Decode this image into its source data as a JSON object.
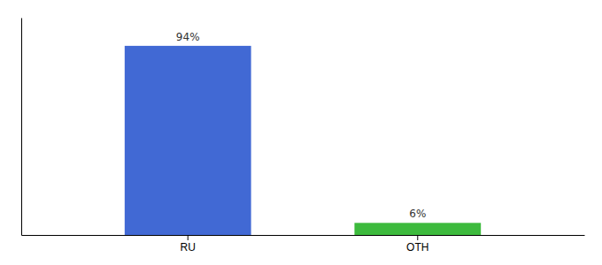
{
  "chart_data": {
    "type": "bar",
    "categories": [
      "RU",
      "OTH"
    ],
    "values": [
      94,
      6
    ],
    "value_labels": [
      "94%",
      "6%"
    ],
    "colors": [
      "#4169d4",
      "#3dba3d"
    ],
    "ylim": [
      0,
      108
    ],
    "data_labels": true,
    "tick_labels": "x",
    "grid": false
  }
}
